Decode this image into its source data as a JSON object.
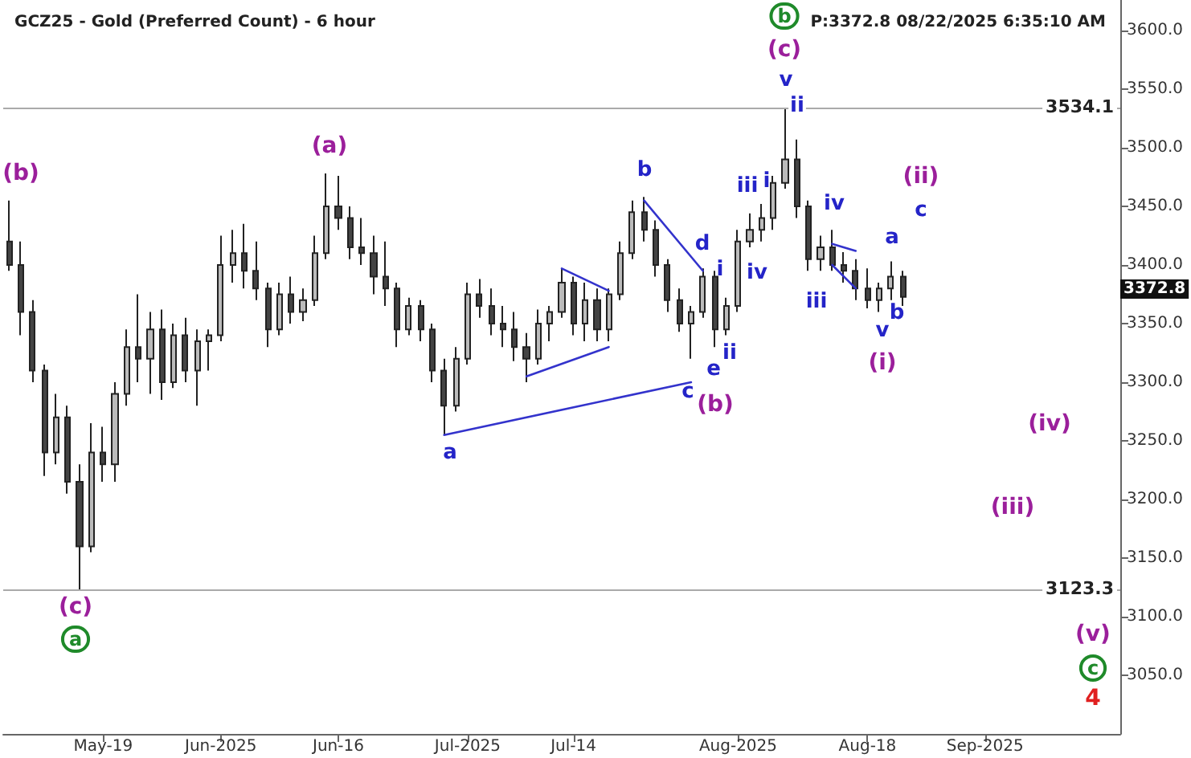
{
  "chart_data": {
    "type": "candlestick",
    "title": "GCZ25 - Gold (Preferred Count) - 6 hour",
    "subtitle": "P:3372.8 08/22/2025 6:35:10 AM",
    "categories": [
      null,
      null,
      null,
      null,
      null,
      null,
      null,
      null,
      "May-19",
      null,
      null,
      null,
      null,
      null,
      null,
      null,
      null,
      null,
      "Jun-2025",
      null,
      null,
      null,
      null,
      null,
      null,
      null,
      null,
      null,
      "Jun-16",
      null,
      null,
      null,
      null,
      null,
      null,
      null,
      null,
      null,
      null,
      "Jul-2025",
      null,
      null,
      null,
      null,
      null,
      null,
      null,
      null,
      "Jul-14",
      null,
      null,
      null,
      null,
      null,
      null,
      null,
      null,
      null,
      null,
      null,
      null,
      null,
      "Aug-2025",
      null,
      null,
      null,
      null,
      null,
      null,
      null,
      null,
      null,
      null,
      "Aug-18",
      null,
      null,
      null,
      null,
      null,
      null,
      null,
      null,
      null,
      "Sep-2025",
      null,
      null,
      null,
      null,
      null,
      null,
      null,
      null,
      null,
      null,
      null
    ],
    "ohlc": [
      [
        3420,
        3455,
        3395,
        3400
      ],
      [
        3400,
        3420,
        3340,
        3360
      ],
      [
        3360,
        3370,
        3300,
        3310
      ],
      [
        3310,
        3315,
        3220,
        3240
      ],
      [
        3240,
        3290,
        3230,
        3270
      ],
      [
        3270,
        3280,
        3205,
        3215
      ],
      [
        3215,
        3230,
        3123.3,
        3160
      ],
      [
        3160,
        3265,
        3155,
        3240
      ],
      [
        3240,
        3262,
        3215,
        3230
      ],
      [
        3230,
        3300,
        3215,
        3290
      ],
      [
        3290,
        3345,
        3280,
        3330
      ],
      [
        3330,
        3375,
        3300,
        3320
      ],
      [
        3320,
        3360,
        3290,
        3345
      ],
      [
        3345,
        3362,
        3285,
        3300
      ],
      [
        3300,
        3350,
        3295,
        3340
      ],
      [
        3340,
        3355,
        3300,
        3310
      ],
      [
        3310,
        3345,
        3280,
        3335
      ],
      [
        3335,
        3345,
        3310,
        3340
      ],
      [
        3340,
        3425,
        3335,
        3400
      ],
      [
        3400,
        3430,
        3385,
        3410
      ],
      [
        3410,
        3435,
        3380,
        3395
      ],
      [
        3395,
        3420,
        3370,
        3380
      ],
      [
        3380,
        3385,
        3330,
        3345
      ],
      [
        3345,
        3385,
        3340,
        3375
      ],
      [
        3375,
        3390,
        3350,
        3360
      ],
      [
        3360,
        3380,
        3352,
        3370
      ],
      [
        3370,
        3425,
        3365,
        3410
      ],
      [
        3410,
        3478,
        3405,
        3450
      ],
      [
        3450,
        3476,
        3430,
        3440
      ],
      [
        3440,
        3450,
        3405,
        3415
      ],
      [
        3415,
        3440,
        3400,
        3410
      ],
      [
        3410,
        3425,
        3375,
        3390
      ],
      [
        3390,
        3420,
        3365,
        3380
      ],
      [
        3380,
        3385,
        3330,
        3345
      ],
      [
        3345,
        3372,
        3340,
        3365
      ],
      [
        3365,
        3370,
        3335,
        3345
      ],
      [
        3345,
        3350,
        3300,
        3310
      ],
      [
        3310,
        3320,
        3255,
        3280
      ],
      [
        3280,
        3330,
        3275,
        3320
      ],
      [
        3320,
        3385,
        3315,
        3375
      ],
      [
        3375,
        3388,
        3355,
        3365
      ],
      [
        3365,
        3380,
        3340,
        3350
      ],
      [
        3350,
        3365,
        3330,
        3345
      ],
      [
        3345,
        3360,
        3318,
        3330
      ],
      [
        3330,
        3342,
        3300,
        3320
      ],
      [
        3320,
        3362,
        3315,
        3350
      ],
      [
        3350,
        3365,
        3335,
        3360
      ],
      [
        3360,
        3397,
        3355,
        3385
      ],
      [
        3385,
        3390,
        3340,
        3350
      ],
      [
        3350,
        3385,
        3335,
        3370
      ],
      [
        3370,
        3380,
        3335,
        3345
      ],
      [
        3345,
        3380,
        3335,
        3375
      ],
      [
        3375,
        3420,
        3370,
        3410
      ],
      [
        3410,
        3455,
        3405,
        3445
      ],
      [
        3445,
        3458,
        3420,
        3430
      ],
      [
        3430,
        3438,
        3390,
        3400
      ],
      [
        3400,
        3405,
        3360,
        3370
      ],
      [
        3370,
        3380,
        3343,
        3350
      ],
      [
        3350,
        3365,
        3320,
        3360
      ],
      [
        3360,
        3397,
        3355,
        3390
      ],
      [
        3390,
        3395,
        3330,
        3345
      ],
      [
        3345,
        3372,
        3340,
        3365
      ],
      [
        3365,
        3430,
        3360,
        3420
      ],
      [
        3420,
        3444,
        3415,
        3430
      ],
      [
        3430,
        3452,
        3420,
        3440
      ],
      [
        3440,
        3476,
        3430,
        3470
      ],
      [
        3470,
        3534.1,
        3465,
        3490
      ],
      [
        3490,
        3507,
        3440,
        3450
      ],
      [
        3450,
        3455,
        3395,
        3405
      ],
      [
        3405,
        3425,
        3395,
        3415
      ],
      [
        3415,
        3430,
        3395,
        3400
      ],
      [
        3400,
        3411,
        3385,
        3395
      ],
      [
        3395,
        3405,
        3370,
        3380
      ],
      [
        3380,
        3397,
        3363,
        3370
      ],
      [
        3370,
        3385,
        3360,
        3380
      ],
      [
        3380,
        3403,
        3370,
        3390
      ],
      [
        3390,
        3395,
        3365,
        3372.8
      ],
      null,
      null,
      null,
      null,
      null,
      null,
      null,
      null,
      null,
      null,
      null,
      null,
      null,
      null,
      null,
      null,
      null,
      null
    ],
    "colors": [
      "#444444",
      "#444444",
      "#444444",
      "#444444",
      "#bbbbbb",
      "#444444",
      "#444444",
      "#bbbbbb",
      "#444444",
      "#bbbbbb",
      "#bbbbbb",
      "#444444",
      "#bbbbbb",
      "#444444",
      "#bbbbbb",
      "#444444",
      "#bbbbbb",
      "#bbbbbb",
      "#bbbbbb",
      "#bbbbbb",
      "#444444",
      "#444444",
      "#444444",
      "#bbbbbb",
      "#444444",
      "#bbbbbb",
      "#bbbbbb",
      "#bbbbbb",
      "#444444",
      "#444444",
      "#444444",
      "#444444",
      "#444444",
      "#444444",
      "#bbbbbb",
      "#444444",
      "#444444",
      "#444444",
      "#bbbbbb",
      "#bbbbbb",
      "#444444",
      "#444444",
      "#444444",
      "#444444",
      "#444444",
      "#bbbbbb",
      "#bbbbbb",
      "#bbbbbb",
      "#444444",
      "#bbbbbb",
      "#444444",
      "#bbbbbb",
      "#bbbbbb",
      "#bbbbbb",
      "#444444",
      "#444444",
      "#444444",
      "#444444",
      "#bbbbbb",
      "#bbbbbb",
      "#444444",
      "#bbbbbb",
      "#bbbbbb",
      "#bbbbbb",
      "#bbbbbb",
      "#bbbbbb",
      "#bbbbbb",
      "#444444",
      "#444444",
      "#bbbbbb",
      "#444444",
      "#444444",
      "#444444",
      "#444444",
      "#bbbbbb",
      "#bbbbbb",
      "#444444",
      null,
      null,
      null,
      null,
      null,
      null,
      null,
      null,
      null,
      null,
      null,
      null,
      null,
      null,
      null,
      null,
      null,
      null
    ],
    "series": [
      {
        "type": "line",
        "color": "#3333cc",
        "values": [
          null,
          null,
          null,
          null,
          null,
          null,
          null,
          null,
          null,
          null,
          null,
          null,
          null,
          null,
          null,
          null,
          null,
          null,
          null,
          null,
          null,
          null,
          null,
          null,
          null,
          null,
          null,
          null,
          null,
          null,
          null,
          null,
          null,
          null,
          null,
          null,
          null,
          3255,
          null,
          null,
          null,
          null,
          null,
          null,
          null,
          null,
          null,
          null,
          null,
          null,
          null,
          null,
          null,
          null,
          null,
          null,
          null,
          null,
          3300,
          null,
          null,
          null,
          null,
          null,
          null,
          null,
          null,
          null,
          null,
          null,
          null,
          null,
          null,
          null,
          null,
          null,
          null,
          null,
          null,
          null,
          null,
          null,
          null,
          null,
          null,
          null,
          null,
          null,
          null,
          null,
          null,
          null,
          null,
          null,
          null
        ]
      },
      {
        "type": "line",
        "color": "#3333cc",
        "values": [
          null,
          null,
          null,
          null,
          null,
          null,
          null,
          null,
          null,
          null,
          null,
          null,
          null,
          null,
          null,
          null,
          null,
          null,
          null,
          null,
          null,
          null,
          null,
          null,
          null,
          null,
          null,
          null,
          null,
          null,
          null,
          null,
          null,
          null,
          null,
          null,
          null,
          null,
          null,
          null,
          null,
          null,
          null,
          null,
          3305,
          null,
          null,
          null,
          null,
          null,
          null,
          3330,
          null,
          null,
          null,
          null,
          null,
          null,
          null,
          null,
          null,
          null,
          null,
          null,
          null,
          null,
          null,
          null,
          null,
          null,
          null,
          null,
          null,
          null,
          null,
          null,
          null,
          null,
          null,
          null,
          null,
          null,
          null,
          null,
          null,
          null,
          null,
          null,
          null,
          null,
          null,
          null,
          null,
          null,
          null
        ]
      },
      {
        "type": "line",
        "color": "#3333cc",
        "values": [
          null,
          null,
          null,
          null,
          null,
          null,
          null,
          null,
          null,
          null,
          null,
          null,
          null,
          null,
          null,
          null,
          null,
          null,
          null,
          null,
          null,
          null,
          null,
          null,
          null,
          null,
          null,
          null,
          null,
          null,
          null,
          null,
          null,
          null,
          null,
          null,
          null,
          null,
          null,
          null,
          null,
          null,
          null,
          null,
          null,
          null,
          null,
          3397,
          null,
          null,
          null,
          3378,
          null,
          null,
          null,
          null,
          null,
          null,
          null,
          null,
          null,
          null,
          null,
          null,
          null,
          null,
          null,
          null,
          null,
          null,
          null,
          null,
          null,
          null,
          null,
          null,
          null,
          null,
          null,
          null,
          null,
          null,
          null,
          null,
          null,
          null,
          null,
          null,
          null,
          null,
          null,
          null,
          null,
          null,
          null
        ]
      },
      {
        "type": "line",
        "color": "#3333cc",
        "values": [
          null,
          null,
          null,
          null,
          null,
          null,
          null,
          null,
          null,
          null,
          null,
          null,
          null,
          null,
          null,
          null,
          null,
          null,
          null,
          null,
          null,
          null,
          null,
          null,
          null,
          null,
          null,
          null,
          null,
          null,
          null,
          null,
          null,
          null,
          null,
          null,
          null,
          null,
          null,
          null,
          null,
          null,
          null,
          null,
          null,
          null,
          null,
          null,
          null,
          null,
          null,
          null,
          null,
          null,
          3455,
          null,
          null,
          null,
          null,
          3395,
          null,
          null,
          null,
          null,
          null,
          null,
          null,
          null,
          null,
          null,
          null,
          null,
          null,
          null,
          null,
          null,
          null,
          null,
          null,
          null,
          null,
          null,
          null,
          null,
          null,
          null,
          null,
          null,
          null,
          null,
          null,
          null,
          null,
          null,
          null
        ]
      },
      {
        "type": "line",
        "color": "#3333cc",
        "values": [
          null,
          null,
          null,
          null,
          null,
          null,
          null,
          null,
          null,
          null,
          null,
          null,
          null,
          null,
          null,
          null,
          null,
          null,
          null,
          null,
          null,
          null,
          null,
          null,
          null,
          null,
          null,
          null,
          null,
          null,
          null,
          null,
          null,
          null,
          null,
          null,
          null,
          null,
          null,
          null,
          null,
          null,
          null,
          null,
          null,
          null,
          null,
          null,
          null,
          null,
          null,
          null,
          null,
          null,
          null,
          null,
          null,
          null,
          null,
          null,
          null,
          null,
          null,
          null,
          null,
          null,
          null,
          null,
          null,
          null,
          3418,
          null,
          3412,
          null,
          null,
          null,
          null,
          null,
          null,
          null,
          null,
          null,
          null,
          null,
          null,
          null,
          null,
          null,
          null,
          null,
          null,
          null,
          null,
          null,
          null
        ]
      },
      {
        "type": "line",
        "color": "#3333cc",
        "values": [
          null,
          null,
          null,
          null,
          null,
          null,
          null,
          null,
          null,
          null,
          null,
          null,
          null,
          null,
          null,
          null,
          null,
          null,
          null,
          null,
          null,
          null,
          null,
          null,
          null,
          null,
          null,
          null,
          null,
          null,
          null,
          null,
          null,
          null,
          null,
          null,
          null,
          null,
          null,
          null,
          null,
          null,
          null,
          null,
          null,
          null,
          null,
          null,
          null,
          null,
          null,
          null,
          null,
          null,
          null,
          null,
          null,
          null,
          null,
          null,
          null,
          null,
          null,
          null,
          null,
          null,
          null,
          null,
          null,
          null,
          3400,
          null,
          3380,
          null,
          null,
          null,
          null,
          null,
          null,
          null,
          null,
          null,
          null,
          null,
          null,
          null,
          null,
          null,
          null,
          null,
          null,
          null,
          null,
          null,
          null
        ]
      }
    ],
    "ylim": [
      3000,
      3626
    ],
    "yticks": [
      {
        "value": 3050,
        "label": "3050.0"
      },
      {
        "value": 3100,
        "label": "3100.0"
      },
      {
        "value": 3150,
        "label": "3150.0"
      },
      {
        "value": 3200,
        "label": "3200.0"
      },
      {
        "value": 3250,
        "label": "3250.0"
      },
      {
        "value": 3300,
        "label": "3300.0"
      },
      {
        "value": 3350,
        "label": "3350.0"
      },
      {
        "value": 3400,
        "label": "3400.0"
      },
      {
        "value": 3450,
        "label": "3450.0"
      },
      {
        "value": 3500,
        "label": "3500.0"
      },
      {
        "value": 3550,
        "label": "3550.0"
      },
      {
        "value": 3600,
        "label": "3600.0"
      }
    ],
    "ref_lines": [
      {
        "axis": "y",
        "value": 3534.1,
        "label": "3534.1",
        "color": "#aaaaaa"
      },
      {
        "axis": "y",
        "value": 3123.3,
        "label": "3123.3",
        "color": "#aaaaaa"
      }
    ],
    "annotations": [
      "(b)",
      "(c)",
      "a",
      "(a)",
      "a",
      "b",
      "d",
      "c",
      "e",
      "(b)",
      "i",
      "ii",
      "iii",
      "iv",
      "b",
      "(c)",
      "v",
      "ii",
      "i",
      "iii",
      "iv",
      "a",
      "b",
      "v",
      "(i)",
      "(ii)",
      "c",
      "(iv)",
      "(iii)",
      "(v)",
      "c",
      "4",
      "3372.8"
    ],
    "grid": false,
    "marker": "none",
    "line_style": "solid"
  }
}
